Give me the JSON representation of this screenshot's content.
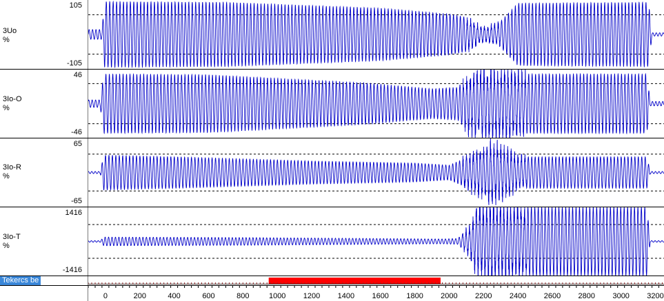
{
  "chart_data": {
    "type": "line",
    "x_axis": {
      "range": [
        -100,
        3250
      ],
      "ticks": [
        0,
        200,
        400,
        600,
        800,
        1000,
        1200,
        1400,
        1600,
        1800,
        2000,
        2200,
        2400,
        2600,
        2800,
        3000,
        3200
      ]
    },
    "channels": [
      {
        "name": "3Uo",
        "unit": "%",
        "ymax": "105",
        "ymin": "-105",
        "range": [
          -105,
          105
        ],
        "dashed_levels": [
          60,
          -60
        ],
        "envelope": [
          [
            -100,
            15
          ],
          [
            -20,
            15
          ],
          [
            -5,
            100
          ],
          [
            700,
            98
          ],
          [
            1600,
            80
          ],
          [
            2000,
            62
          ],
          [
            2120,
            50
          ],
          [
            2200,
            25
          ],
          [
            2300,
            40
          ],
          [
            2400,
            95
          ],
          [
            3160,
            98
          ],
          [
            3180,
            5
          ],
          [
            3250,
            5
          ]
        ]
      },
      {
        "name": "3Io-O",
        "unit": "%",
        "ymax": "46",
        "ymin": "-46",
        "range": [
          -46,
          46
        ],
        "dashed_levels": [
          27,
          -27
        ],
        "envelope": [
          [
            -100,
            5
          ],
          [
            -30,
            5
          ],
          [
            -10,
            40
          ],
          [
            600,
            39
          ],
          [
            1500,
            28
          ],
          [
            1900,
            20
          ],
          [
            2050,
            22
          ],
          [
            2100,
            35
          ],
          [
            2200,
            44
          ],
          [
            2400,
            40
          ],
          [
            3150,
            40
          ],
          [
            3170,
            3
          ],
          [
            3250,
            3
          ]
        ]
      },
      {
        "name": "3Io-R",
        "unit": "%",
        "ymax": "65",
        "ymin": "-65",
        "range": [
          -65,
          65
        ],
        "dashed_levels": [
          35,
          -35
        ],
        "envelope": [
          [
            -100,
            2
          ],
          [
            -30,
            2
          ],
          [
            -10,
            33
          ],
          [
            400,
            30
          ],
          [
            1200,
            22
          ],
          [
            1800,
            18
          ],
          [
            2000,
            14
          ],
          [
            2100,
            28
          ],
          [
            2250,
            55
          ],
          [
            2400,
            30
          ],
          [
            3150,
            30
          ],
          [
            3170,
            2
          ],
          [
            3250,
            2
          ]
        ]
      },
      {
        "name": "3Io-T",
        "unit": "%",
        "ymax": "1416",
        "ymin": "-1416",
        "range": [
          -1416,
          1416
        ],
        "dashed_levels": [
          700,
          -700
        ],
        "envelope": [
          [
            -100,
            30
          ],
          [
            -30,
            30
          ],
          [
            -10,
            180
          ],
          [
            800,
            160
          ],
          [
            1600,
            120
          ],
          [
            1950,
            100
          ],
          [
            2050,
            120
          ],
          [
            2120,
            600
          ],
          [
            2170,
            1416
          ],
          [
            3150,
            1416
          ],
          [
            3170,
            30
          ],
          [
            3250,
            30
          ]
        ]
      }
    ],
    "digital": {
      "name": "Tekercs be",
      "active_from": 950,
      "active_to": 1950
    },
    "colors": {
      "trace": "#0000c8",
      "digital_active": "#ff0000",
      "highlight": "#3a87d9"
    }
  }
}
